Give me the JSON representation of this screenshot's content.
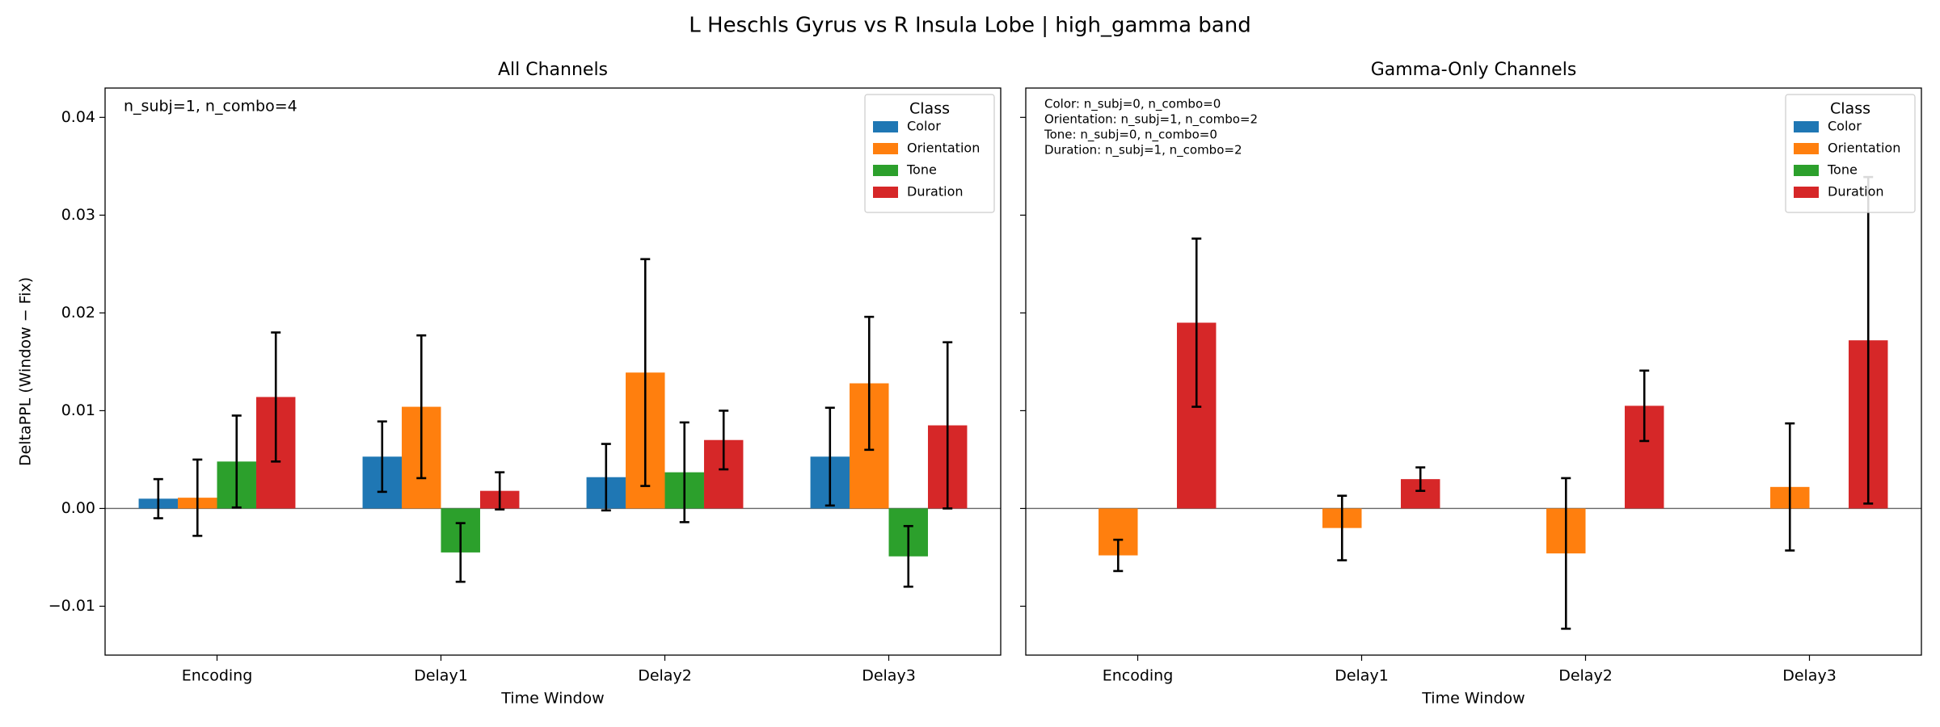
{
  "title": "L Heschls Gyrus vs R Insula Lobe  |  high_gamma band",
  "chart_data": [
    {
      "type": "bar",
      "title": "All Channels",
      "xlabel": "Time Window",
      "ylabel": "DeltaPPL (Window − Fix)",
      "annotations": [
        "n_subj=1, n_combo=4"
      ],
      "legend_title": "Class",
      "legend": "upper right",
      "ytick_labels_visible": true,
      "categories": [
        "Encoding",
        "Delay1",
        "Delay2",
        "Delay3"
      ],
      "ylim": [
        -0.015,
        0.043
      ],
      "yticks": [
        {
          "value": -0.01,
          "label": "−0.01"
        },
        {
          "value": 0,
          "label": "0.00"
        },
        0.01,
        0.02,
        0.03,
        0.04
      ],
      "series": [
        {
          "name": "Color",
          "color": "#1f77b4",
          "values": [
            0.001,
            0.0053,
            0.0032,
            0.0053
          ],
          "errors": [
            0.002,
            0.0036,
            0.0034,
            0.005
          ]
        },
        {
          "name": "Orientation",
          "color": "#ff7f0e",
          "values": [
            0.0011,
            0.0104,
            0.0139,
            0.0128
          ],
          "errors": [
            0.0039,
            0.0073,
            0.0116,
            0.0068
          ]
        },
        {
          "name": "Tone",
          "color": "#2ca02c",
          "values": [
            0.0048,
            -0.0045,
            0.0037,
            -0.0049
          ],
          "errors": [
            0.0047,
            0.003,
            0.0051,
            0.0031
          ]
        },
        {
          "name": "Duration",
          "color": "#d62728",
          "values": [
            0.0114,
            0.0018,
            0.007,
            0.0085
          ],
          "errors": [
            0.0066,
            0.0019,
            0.003,
            0.0085
          ]
        }
      ]
    },
    {
      "type": "bar",
      "title": "Gamma-Only Channels",
      "xlabel": "Time Window",
      "annotations": [
        "Color: n_subj=0, n_combo=0",
        "Orientation: n_subj=1, n_combo=2",
        "Tone: n_subj=0, n_combo=0",
        "Duration: n_subj=1, n_combo=2"
      ],
      "legend_title": "Class",
      "legend": "upper right",
      "ytick_labels_visible": false,
      "categories": [
        "Encoding",
        "Delay1",
        "Delay2",
        "Delay3"
      ],
      "ylim": [
        -0.015,
        0.043
      ],
      "yticks": [
        -0.01,
        0,
        0.01,
        0.02,
        0.03,
        0.04
      ],
      "series": [
        {
          "name": "Color",
          "color": "#1f77b4",
          "values": [
            null,
            null,
            null,
            null
          ],
          "errors": [
            null,
            null,
            null,
            null
          ]
        },
        {
          "name": "Orientation",
          "color": "#ff7f0e",
          "values": [
            -0.0048,
            -0.002,
            -0.0046,
            0.0022
          ],
          "errors": [
            0.0016,
            0.0033,
            0.0077,
            0.0065
          ]
        },
        {
          "name": "Tone",
          "color": "#2ca02c",
          "values": [
            null,
            null,
            null,
            null
          ],
          "errors": [
            null,
            null,
            null,
            null
          ]
        },
        {
          "name": "Duration",
          "color": "#d62728",
          "values": [
            0.019,
            0.003,
            0.0105,
            0.0172
          ],
          "errors": [
            0.0086,
            0.0012,
            0.0036,
            0.0167
          ]
        }
      ]
    }
  ]
}
